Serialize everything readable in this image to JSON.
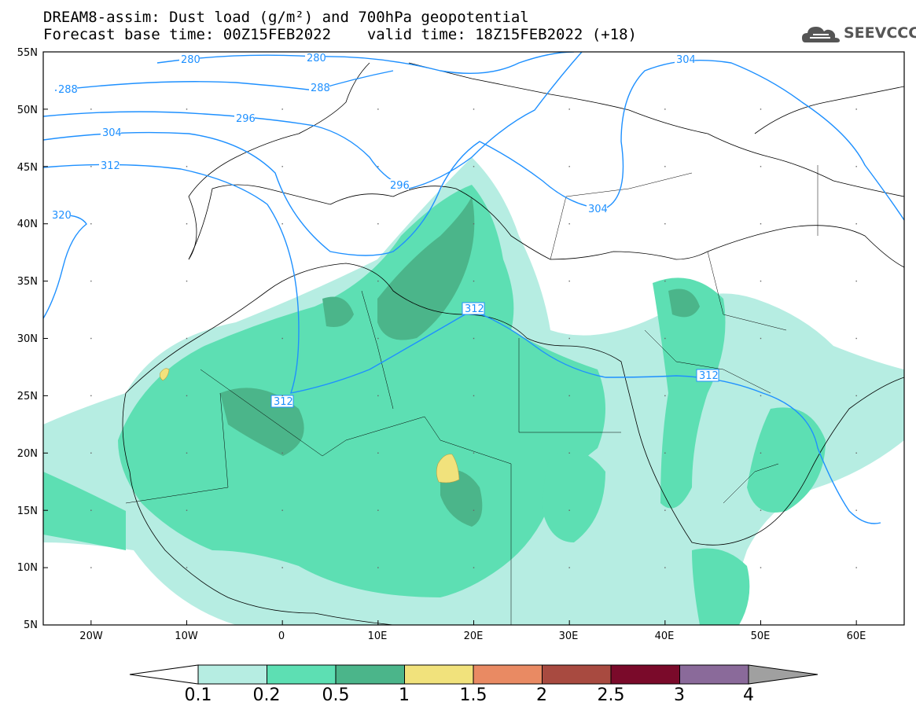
{
  "title": {
    "line1": "DREAM8-assim: Dust load (g/m²) and 700hPa geopotential",
    "base_time_label": "Forecast base time: 00Z15FEB2022",
    "valid_time_label": "valid time: 18Z15FEB2022 (+18)"
  },
  "logo": {
    "text": "SEEVCCC",
    "icon": "cloud-icon"
  },
  "map": {
    "lon_range": [
      -25,
      65
    ],
    "lat_range": [
      5,
      55
    ],
    "lon_ticks": [
      "20W",
      "10W",
      "0",
      "10E",
      "20E",
      "30E",
      "40E",
      "50E",
      "60E"
    ],
    "lat_ticks": [
      "55N",
      "50N",
      "45N",
      "40N",
      "35N",
      "30N",
      "25N",
      "20N",
      "15N",
      "10N",
      "5N"
    ],
    "contour_labels": [
      "280",
      "280",
      "288",
      "288",
      "296",
      "296",
      "304",
      "304",
      "304",
      "312",
      "312",
      "312",
      "312",
      "320"
    ],
    "colors": {
      "contour": "#1e90ff",
      "coast": "#000000"
    }
  },
  "colorbar": {
    "labels": [
      "0.1",
      "0.2",
      "0.5",
      "1",
      "1.5",
      "2",
      "2.5",
      "3",
      "4"
    ],
    "colors": [
      "#b6ede2",
      "#5ddfb3",
      "#4bb58a",
      "#f1e27c",
      "#e98a63",
      "#a84a40",
      "#7a0a2a",
      "#8a6a9a",
      "#a0a0a0"
    ]
  }
}
